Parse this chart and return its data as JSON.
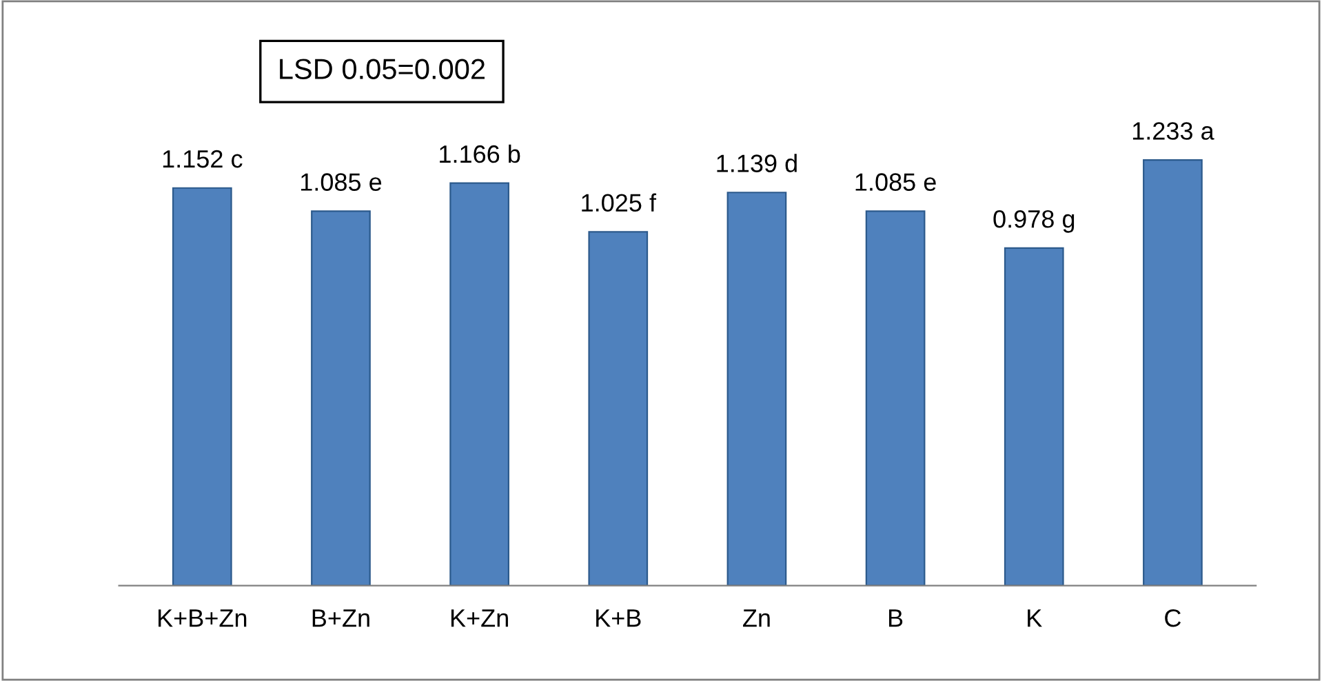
{
  "chart_data": {
    "type": "bar",
    "categories": [
      "K+B+Zn",
      "B+Zn",
      "K+Zn",
      "K+B",
      "Zn",
      "B",
      "K",
      "C"
    ],
    "values": [
      1.152,
      1.085,
      1.166,
      1.025,
      1.139,
      1.085,
      0.978,
      1.233
    ],
    "value_labels": [
      "1.152 c",
      "1.085 e",
      "1.166 b",
      "1.025 f",
      "1.139 d",
      "1.085 e",
      "0.978 g",
      "1.233 a"
    ],
    "color": "#4f81bd",
    "annotations": [
      "LSD 0.05=0.002"
    ],
    "grid": false,
    "legend": false
  }
}
